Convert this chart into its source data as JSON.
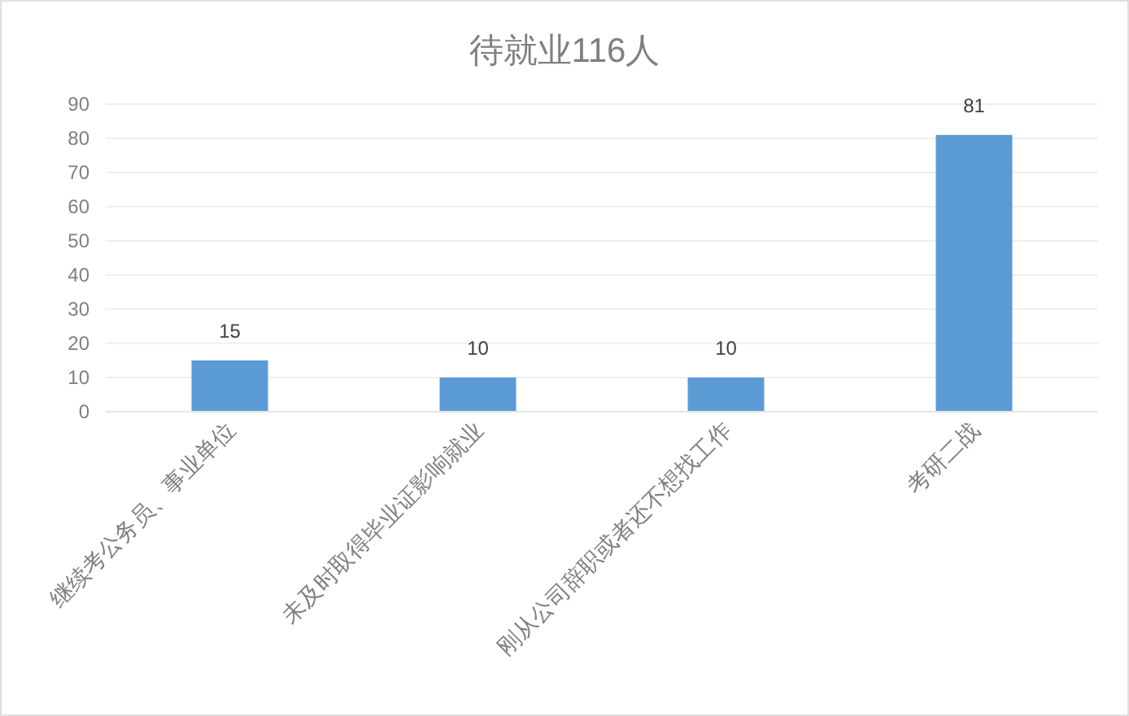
{
  "chart_data": {
    "type": "bar",
    "title": "待就业116人",
    "categories": [
      "继续考公务员、事业单位",
      "未及时取得毕业证影响就业",
      "刚从公司辞职或者还不想找工作",
      "考研二战"
    ],
    "values": [
      15,
      10,
      10,
      81
    ],
    "color": "#5b9bd5",
    "ylim": [
      0,
      90
    ],
    "yticks": [
      0,
      10,
      20,
      30,
      40,
      50,
      60,
      70,
      80,
      90
    ],
    "grid": "y",
    "data_labels": true
  }
}
